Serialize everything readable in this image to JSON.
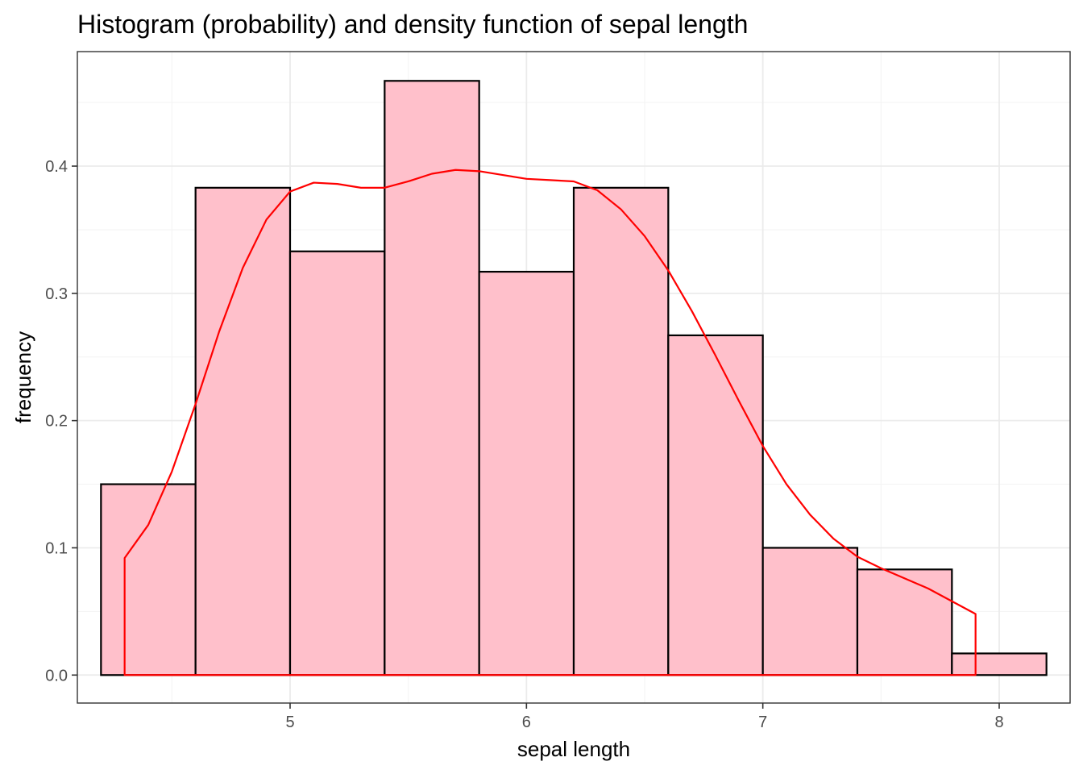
{
  "chart_data": {
    "type": "bar",
    "title": "Histogram (probability) and density function of sepal length",
    "xlabel": "sepal length",
    "ylabel": "frequency",
    "xlim": [
      4.1,
      8.3
    ],
    "ylim": [
      -0.022,
      0.49
    ],
    "x_ticks": [
      5,
      6,
      7,
      8
    ],
    "y_ticks": [
      0.0,
      0.1,
      0.2,
      0.3,
      0.4
    ],
    "x_tick_labels": [
      "5",
      "6",
      "7",
      "8"
    ],
    "y_tick_labels": [
      "0.0",
      "0.1",
      "0.2",
      "0.3",
      "0.4"
    ],
    "grid": true,
    "colors": {
      "bar_fill": "#ffc0cb",
      "bar_edge": "#000000",
      "density": "#ff0000"
    },
    "bins": [
      {
        "x0": 4.2,
        "x1": 4.6,
        "value": 0.15
      },
      {
        "x0": 4.6,
        "x1": 5.0,
        "value": 0.383
      },
      {
        "x0": 5.0,
        "x1": 5.4,
        "value": 0.333
      },
      {
        "x0": 5.4,
        "x1": 5.8,
        "value": 0.467
      },
      {
        "x0": 5.8,
        "x1": 6.2,
        "value": 0.317
      },
      {
        "x0": 6.2,
        "x1": 6.6,
        "value": 0.383
      },
      {
        "x0": 6.6,
        "x1": 7.0,
        "value": 0.267
      },
      {
        "x0": 7.0,
        "x1": 7.4,
        "value": 0.1
      },
      {
        "x0": 7.4,
        "x1": 7.8,
        "value": 0.083
      },
      {
        "x0": 7.8,
        "x1": 8.2,
        "value": 0.017
      }
    ],
    "density": {
      "x": [
        4.3,
        4.4,
        4.5,
        4.6,
        4.7,
        4.8,
        4.9,
        5.0,
        5.1,
        5.2,
        5.3,
        5.4,
        5.5,
        5.6,
        5.7,
        5.8,
        5.9,
        6.0,
        6.1,
        6.2,
        6.3,
        6.4,
        6.5,
        6.6,
        6.7,
        6.8,
        6.9,
        7.0,
        7.1,
        7.2,
        7.3,
        7.4,
        7.5,
        7.6,
        7.7,
        7.8,
        7.9
      ],
      "y": [
        0.092,
        0.118,
        0.16,
        0.213,
        0.27,
        0.32,
        0.358,
        0.38,
        0.387,
        0.386,
        0.383,
        0.383,
        0.388,
        0.394,
        0.397,
        0.396,
        0.393,
        0.39,
        0.389,
        0.388,
        0.381,
        0.366,
        0.345,
        0.318,
        0.286,
        0.251,
        0.215,
        0.18,
        0.15,
        0.126,
        0.107,
        0.093,
        0.084,
        0.076,
        0.068,
        0.058,
        0.048
      ]
    }
  }
}
